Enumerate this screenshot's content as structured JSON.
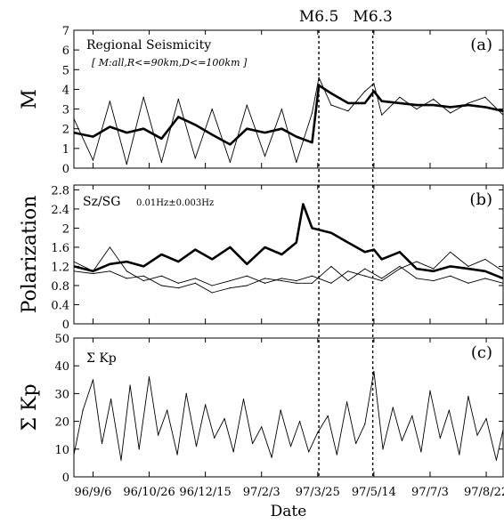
{
  "chart_data": [
    {
      "id": "a",
      "type": "line",
      "panel_label": "(a)",
      "title": "Regional Seismicity",
      "subtitle": "[ M:all,R<=90km,D<=100km ]",
      "ylabel": "M",
      "ylim": [
        0,
        7
      ],
      "yticks": [
        0,
        1,
        2,
        3,
        4,
        5,
        6,
        7
      ],
      "series": [
        {
          "style": "thick",
          "x": [
            "96/8/20",
            "96/9/6",
            "96/9/21",
            "96/10/6",
            "96/10/21",
            "96/11/6",
            "96/11/21",
            "96/12/6",
            "96/12/21",
            "97/1/6",
            "97/1/21",
            "97/2/6",
            "97/2/21",
            "97/3/6",
            "97/3/20",
            "97/3/26",
            "97/4/6",
            "97/4/21",
            "97/5/6",
            "97/5/14",
            "97/5/21",
            "97/6/6",
            "97/6/21",
            "97/7/6",
            "97/7/21",
            "97/8/6",
            "97/8/21",
            "97/9/6"
          ],
          "y": [
            1.8,
            1.6,
            2.1,
            1.8,
            2.0,
            1.5,
            2.6,
            2.2,
            1.7,
            1.2,
            2.0,
            1.8,
            2.0,
            1.6,
            1.3,
            4.2,
            3.8,
            3.3,
            3.3,
            3.9,
            3.4,
            3.3,
            3.2,
            3.2,
            3.1,
            3.2,
            3.1,
            2.9
          ]
        },
        {
          "style": "thin",
          "x": [
            "96/8/20",
            "96/9/6",
            "96/9/21",
            "96/10/6",
            "96/10/21",
            "96/11/6",
            "96/11/21",
            "96/12/6",
            "96/12/21",
            "97/1/6",
            "97/1/21",
            "97/2/6",
            "97/2/21",
            "97/3/6",
            "97/3/20",
            "97/3/26",
            "97/4/6",
            "97/4/21",
            "97/5/6",
            "97/5/14",
            "97/5/21",
            "97/6/6",
            "97/6/21",
            "97/7/6",
            "97/7/21",
            "97/8/6",
            "97/8/21",
            "97/9/6"
          ],
          "y": [
            2.5,
            0.4,
            3.4,
            0.2,
            3.6,
            0.3,
            3.5,
            0.5,
            3.0,
            0.3,
            3.2,
            0.6,
            3.0,
            0.3,
            2.8,
            4.6,
            3.2,
            2.9,
            3.9,
            4.3,
            2.7,
            3.6,
            3.0,
            3.5,
            2.8,
            3.3,
            3.6,
            2.7
          ]
        }
      ]
    },
    {
      "id": "b",
      "type": "line",
      "panel_label": "(b)",
      "title": "Sz/SG",
      "subtitle": "0.01Hz±0.003Hz",
      "ylabel": "Polarization",
      "ylim": [
        0,
        2.9
      ],
      "yticks": [
        0,
        0.4,
        0.8,
        1.2,
        1.6,
        2,
        2.4,
        2.8
      ],
      "series": [
        {
          "style": "thick",
          "x": [
            "96/8/20",
            "96/9/6",
            "96/9/21",
            "96/10/6",
            "96/10/21",
            "96/11/6",
            "96/11/21",
            "96/12/6",
            "96/12/21",
            "97/1/6",
            "97/1/21",
            "97/2/6",
            "97/2/21",
            "97/3/6",
            "97/3/12",
            "97/3/20",
            "97/4/6",
            "97/4/21",
            "97/5/6",
            "97/5/14",
            "97/5/21",
            "97/6/6",
            "97/6/21",
            "97/7/6",
            "97/7/21",
            "97/8/6",
            "97/8/21",
            "97/9/6"
          ],
          "y": [
            1.2,
            1.1,
            1.25,
            1.3,
            1.2,
            1.45,
            1.3,
            1.55,
            1.35,
            1.6,
            1.25,
            1.6,
            1.45,
            1.7,
            2.5,
            2.0,
            1.9,
            1.7,
            1.5,
            1.55,
            1.35,
            1.5,
            1.15,
            1.1,
            1.2,
            1.15,
            1.1,
            0.95
          ]
        },
        {
          "style": "thin",
          "x": [
            "96/8/20",
            "96/9/6",
            "96/9/21",
            "96/10/6",
            "96/10/21",
            "96/11/6",
            "96/11/21",
            "96/12/6",
            "96/12/21",
            "97/1/6",
            "97/1/21",
            "97/2/6",
            "97/2/21",
            "97/3/6",
            "97/3/20",
            "97/4/6",
            "97/4/21",
            "97/5/6",
            "97/5/21",
            "97/6/6",
            "97/6/21",
            "97/7/6",
            "97/7/21",
            "97/8/6",
            "97/8/21",
            "97/9/6"
          ],
          "y": [
            1.3,
            1.1,
            1.6,
            1.1,
            0.9,
            1.0,
            0.85,
            0.95,
            0.8,
            0.9,
            1.0,
            0.85,
            0.95,
            0.9,
            1.0,
            0.85,
            1.1,
            1.0,
            0.9,
            1.15,
            1.3,
            1.15,
            1.5,
            1.2,
            1.35,
            1.1
          ]
        },
        {
          "style": "thin",
          "x": [
            "96/8/20",
            "96/9/6",
            "96/9/21",
            "96/10/6",
            "96/10/21",
            "96/11/6",
            "96/11/21",
            "96/12/6",
            "96/12/21",
            "97/1/6",
            "97/1/21",
            "97/2/6",
            "97/2/21",
            "97/3/6",
            "97/3/20",
            "97/4/6",
            "97/4/21",
            "97/5/6",
            "97/5/21",
            "97/6/6",
            "97/6/21",
            "97/7/6",
            "97/7/21",
            "97/8/6",
            "97/8/21",
            "97/9/6"
          ],
          "y": [
            1.1,
            1.05,
            1.1,
            0.95,
            1.0,
            0.8,
            0.75,
            0.85,
            0.65,
            0.75,
            0.8,
            0.95,
            0.9,
            0.85,
            0.85,
            1.2,
            0.9,
            1.15,
            0.95,
            1.2,
            0.95,
            0.9,
            1.0,
            0.85,
            0.95,
            0.85
          ]
        }
      ]
    },
    {
      "id": "c",
      "type": "line",
      "panel_label": "(c)",
      "title": "Σ Kp",
      "ylabel": "Σ Kp",
      "xlabel": "Date",
      "ylim": [
        0,
        50
      ],
      "yticks": [
        0,
        10,
        20,
        30,
        40,
        50
      ],
      "xticks": [
        "96/9/6",
        "96/10/26",
        "96/12/15",
        "97/2/3",
        "97/3/25",
        "97/5/14",
        "97/7/3",
        "97/8/22"
      ],
      "series": [
        {
          "style": "thin",
          "x": [
            "96/8/20",
            "96/8/28",
            "96/9/6",
            "96/9/14",
            "96/9/22",
            "96/10/1",
            "96/10/9",
            "96/10/17",
            "96/10/26",
            "96/11/3",
            "96/11/11",
            "96/11/20",
            "96/11/28",
            "96/12/7",
            "96/12/15",
            "96/12/23",
            "97/1/1",
            "97/1/9",
            "97/1/18",
            "97/1/26",
            "97/2/3",
            "97/2/12",
            "97/2/20",
            "97/3/1",
            "97/3/9",
            "97/3/17",
            "97/3/25",
            "97/4/3",
            "97/4/11",
            "97/4/20",
            "97/4/28",
            "97/5/6",
            "97/5/14",
            "97/5/22",
            "97/5/31",
            "97/6/8",
            "97/6/17",
            "97/6/25",
            "97/7/3",
            "97/7/12",
            "97/7/20",
            "97/7/29",
            "97/8/6",
            "97/8/14",
            "97/8/22",
            "97/8/31",
            "97/9/6"
          ],
          "y": [
            8,
            24,
            35,
            12,
            28,
            6,
            33,
            10,
            36,
            15,
            24,
            8,
            30,
            11,
            26,
            14,
            21,
            9,
            28,
            12,
            18,
            7,
            24,
            11,
            20,
            9,
            16,
            22,
            8,
            27,
            12,
            19,
            38,
            10,
            25,
            13,
            22,
            9,
            31,
            14,
            24,
            8,
            29,
            15,
            21,
            6,
            17
          ]
        }
      ]
    }
  ],
  "events": [
    {
      "label": "M6.5",
      "date": "97/3/26"
    },
    {
      "label": "M6.3",
      "date": "97/5/13"
    }
  ]
}
